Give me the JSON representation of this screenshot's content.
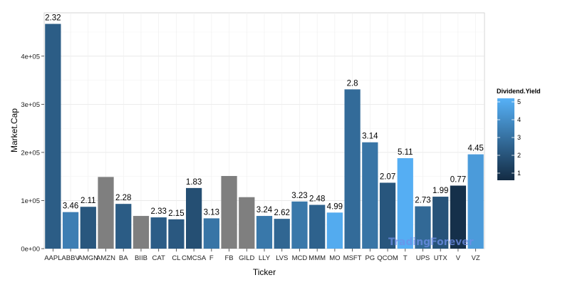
{
  "chart_data": {
    "type": "bar",
    "xlabel": "Ticker",
    "ylabel": "Market.Cap",
    "ylim": [
      0,
      490000
    ],
    "y_ticks": [
      0,
      100000,
      200000,
      300000,
      400000
    ],
    "y_tick_labels": [
      "0e+00",
      "1e+05",
      "2e+05",
      "3e+05",
      "4e+05"
    ],
    "grid": true,
    "legend": {
      "title": "Dividend.Yield",
      "position": "right",
      "ticks": [
        1,
        2,
        3,
        4,
        5
      ],
      "tick_labels": [
        "1",
        "2",
        "3",
        "4",
        "5"
      ],
      "range": [
        0.6,
        5.2
      ],
      "color_low": "#132b43",
      "color_high": "#56b1f7"
    },
    "na_color": "#7f7f7f",
    "categories": [
      "AAPL",
      "ABBV",
      "AMGN",
      "AMZN",
      "BA",
      "BIIB",
      "CAT",
      "CL",
      "CMCSA",
      "F",
      "FB",
      "GILD",
      "LLY",
      "LVS",
      "MCD",
      "MMM",
      "MO",
      "MSFT",
      "PG",
      "QCOM",
      "T",
      "UPS",
      "UTX",
      "V",
      "VZ"
    ],
    "values": [
      467000,
      76000,
      87000,
      149000,
      93000,
      68000,
      65000,
      61000,
      126000,
      63000,
      151000,
      107000,
      68000,
      62000,
      98000,
      91000,
      75000,
      331000,
      221000,
      137000,
      188000,
      88000,
      108000,
      131000,
      196000
    ],
    "dividend_yield": [
      2.32,
      3.46,
      2.11,
      null,
      2.28,
      null,
      2.33,
      2.15,
      1.83,
      3.13,
      null,
      null,
      3.24,
      2.62,
      3.23,
      2.48,
      4.99,
      2.8,
      3.14,
      2.07,
      5.11,
      2.73,
      1.99,
      0.77,
      4.45
    ],
    "data_labels": [
      "2.32",
      "3.46",
      "2.11",
      "",
      "2.28",
      "",
      "2.33",
      "2.15",
      "1.83",
      "3.13",
      "",
      "",
      "3.24",
      "2.62",
      "3.23",
      "2.48",
      "4.99",
      "2.8",
      "3.14",
      "2.07",
      "5.11",
      "2.73",
      "1.99",
      "0.77",
      "4.45"
    ]
  },
  "watermark": "TradingForever"
}
